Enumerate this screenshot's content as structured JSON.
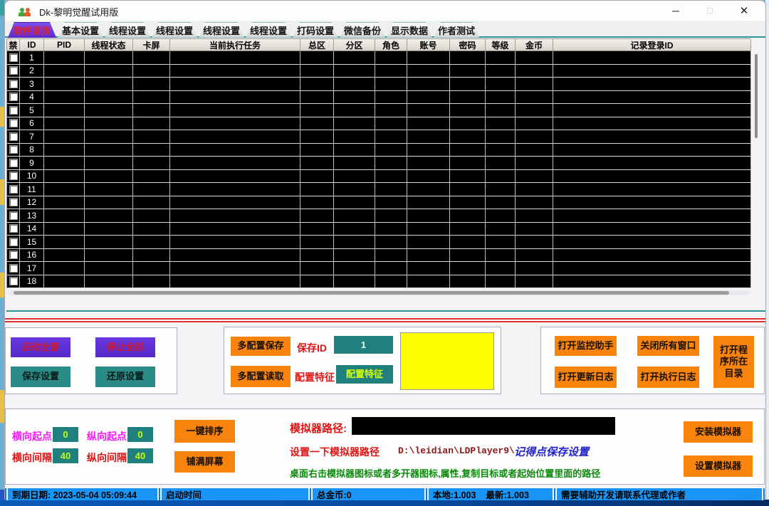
{
  "window": {
    "title": "Dk-黎明觉醒试用版",
    "minimize_glyph": "─",
    "maximize_glyph": "☐",
    "close_glyph": "✕"
  },
  "tabs": [
    {
      "label": "软件首页",
      "active": true
    },
    {
      "label": "基本设置",
      "active": false
    },
    {
      "label": "线程设置",
      "active": false
    },
    {
      "label": "线程设置",
      "active": false
    },
    {
      "label": "线程设置",
      "active": false
    },
    {
      "label": "线程设置",
      "active": false
    },
    {
      "label": "打码设置",
      "active": false
    },
    {
      "label": "微信备份",
      "active": false
    },
    {
      "label": "显示数据",
      "active": false
    },
    {
      "label": "作者测试",
      "active": false
    }
  ],
  "table": {
    "columns": [
      "禁",
      "ID",
      "PID",
      "线程状态",
      "卡屏",
      "当前执行任务",
      "总区",
      "分区",
      "角色",
      "账号",
      "密码",
      "等级",
      "金币",
      "记录登录ID"
    ],
    "row_ids": [
      1,
      2,
      3,
      4,
      5,
      6,
      7,
      8,
      9,
      10,
      11,
      12,
      13,
      14,
      15,
      16,
      17,
      18
    ]
  },
  "panels": {
    "control": {
      "start_all": "启动全部",
      "stop_all": "停止全部",
      "save": "保存设置",
      "restore": "还原设置"
    },
    "config": {
      "multi_save": "多配置保存",
      "save_id_label": "保存ID",
      "save_id_value": "1",
      "multi_load": "多配置读取",
      "feature_label": "配置特征",
      "feature_button": "配置特征"
    },
    "tools": {
      "monitor": "打开监控助手",
      "close_all": "关闭所有窗口",
      "open_dir": "打开程序所在目录",
      "update_log": "打开更新日志",
      "exec_log": "打开执行日志"
    },
    "layout": {
      "h_start_label": "横向起点",
      "h_start_value": "0",
      "v_start_label": "纵向起点",
      "v_start_value": "0",
      "h_gap_label": "横向间隔",
      "h_gap_value": "40",
      "v_gap_label": "纵向间隔",
      "v_gap_value": "40",
      "sort_button": "一键排序",
      "fill_button": "铺满屏幕"
    },
    "emulator": {
      "path_label": "模拟器路径:",
      "path_value": "",
      "hint_set": "设置一下模拟器路径",
      "path_example": "D:\\leidian\\LDPlayer9\\",
      "hint_save": "记得点保存设置",
      "hint_copy": "桌面右击模拟器图标或者多开器图标,属性,复制目标或者起始位置里面的路径",
      "install_button": "安装模拟器",
      "setup_button": "设置模拟器"
    }
  },
  "statusbar": {
    "expiry": "到期日期: 2023-05-04 05:09:44",
    "start_time": "启动时间",
    "total_gold": "总金币:0",
    "local_version": "本地:1.003",
    "latest_version": "最新:1.003",
    "contact": "需要辅助开发请联系代理或作者"
  }
}
